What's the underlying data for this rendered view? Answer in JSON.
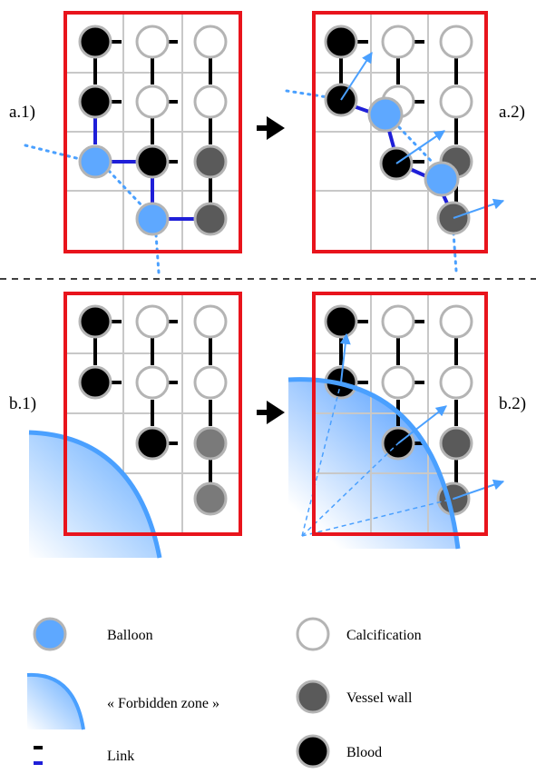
{
  "panels": {
    "a1": "a.1)",
    "a2": "a.2)",
    "b1": "b.1)",
    "b2": "b.2)"
  },
  "legend": {
    "balloon": "Balloon",
    "forbidden_zone": "« Forbidden zone »",
    "link": "Link",
    "calcification": "Calcification",
    "vessel_wall": "Vessel wall",
    "blood": "Blood"
  },
  "colors": {
    "frame": "#e8141c",
    "grid": "#c8c8c8",
    "blood": "#000000",
    "calcification": "#ffffff",
    "vessel_wall": "#5a5a5a",
    "vessel_wall_light": "#7a7a7a",
    "balloon": "#5ea8ff",
    "link_blue": "#1f1fd8",
    "arrow_blue": "#4aa0ff",
    "node_border": "#b4b4b4"
  }
}
